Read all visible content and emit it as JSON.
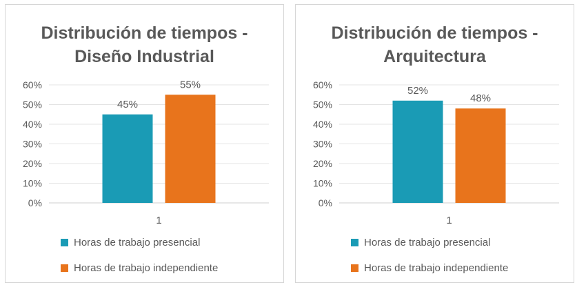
{
  "chart_data": [
    {
      "type": "bar",
      "title": "Distribución de tiempos - Diseño Industrial",
      "title_lines": [
        "Distribución de tiempos -",
        "Diseño Industrial"
      ],
      "categories": [
        "1"
      ],
      "series": [
        {
          "name": "Horas de trabajo presencial",
          "values": [
            0.45
          ],
          "label": "45%",
          "color": "#1a9bb5"
        },
        {
          "name": "Horas de trabajo independiente",
          "values": [
            0.55
          ],
          "label": "55%",
          "color": "#e8741c"
        }
      ],
      "ylim": [
        0,
        0.6
      ],
      "yticks": [
        "0%",
        "10%",
        "20%",
        "30%",
        "40%",
        "50%",
        "60%"
      ],
      "grid": true,
      "legend": "bottom"
    },
    {
      "type": "bar",
      "title": "Distribución de tiempos - Arquitectura",
      "title_lines": [
        "Distribución de tiempos -",
        "Arquitectura"
      ],
      "categories": [
        "1"
      ],
      "series": [
        {
          "name": "Horas de trabajo presencial",
          "values": [
            0.52
          ],
          "label": "52%",
          "color": "#1a9bb5"
        },
        {
          "name": "Horas de trabajo independiente",
          "values": [
            0.48
          ],
          "label": "48%",
          "color": "#e8741c"
        }
      ],
      "ylim": [
        0,
        0.6
      ],
      "yticks": [
        "0%",
        "10%",
        "20%",
        "30%",
        "40%",
        "50%",
        "60%"
      ],
      "grid": true,
      "legend": "bottom"
    }
  ]
}
